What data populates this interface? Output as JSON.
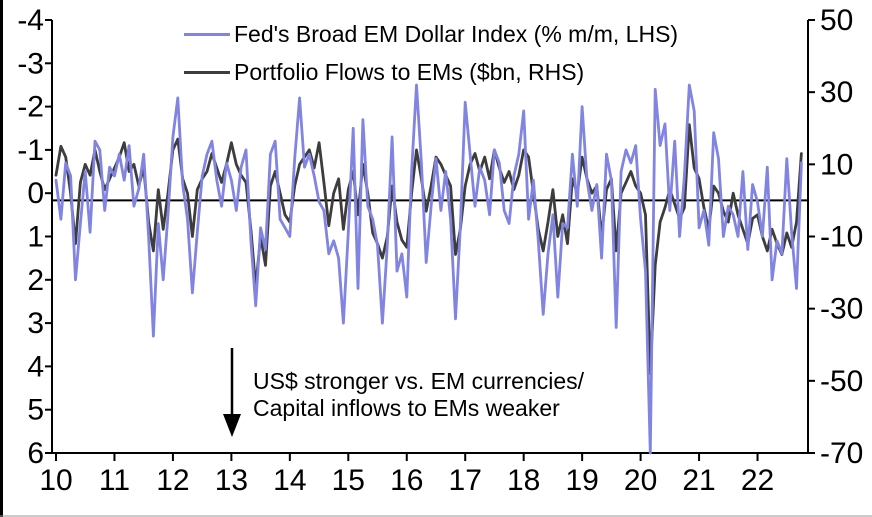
{
  "legend": {
    "items": [
      {
        "label": "Fed's Broad EM Dollar Index (% m/m, LHS)",
        "color": "#8184e0"
      },
      {
        "label": "Portfolio Flows to EMs ($bn, RHS)",
        "color": "#3d3d3d"
      }
    ]
  },
  "annotation": {
    "line1": "US$ stronger vs. EM currencies/",
    "line2": "Capital inflows to EMs weaker",
    "arrow_direction": "down",
    "arrow_color": "#000000"
  },
  "chart_data": {
    "type": "line",
    "title": "",
    "x_unit": "monthly, Jan 2010 to Oct 2022",
    "x_tick_labels": [
      "10",
      "11",
      "12",
      "13",
      "14",
      "15",
      "16",
      "17",
      "18",
      "19",
      "20",
      "21",
      "22"
    ],
    "left_axis": {
      "name": "Fed's Broad EM Dollar Index (% m/m)",
      "ticks": [
        -4,
        -3,
        -2,
        -1,
        0,
        1,
        2,
        3,
        4,
        5,
        6
      ],
      "min": -4,
      "max": 6,
      "inverted_display": true
    },
    "right_axis": {
      "name": "Portfolio Flows to EMs ($bn)",
      "ticks": [
        50,
        30,
        10,
        -10,
        -30,
        -50,
        -70
      ],
      "min": -70,
      "max": 50
    },
    "zero_line": 0,
    "axis_color": "#000000",
    "series": [
      {
        "name": "Fed's Broad EM Dollar Index (% m/m, LHS)",
        "axis": "left",
        "color": "#8184e0",
        "values": [
          -0.3,
          0.6,
          -0.7,
          -0.4,
          2.0,
          0.7,
          -0.5,
          0.9,
          -1.2,
          -1.0,
          0.4,
          -0.6,
          -0.4,
          -0.9,
          -0.3,
          -1.1,
          0.3,
          -0.1,
          -0.9,
          1.0,
          3.3,
          0.7,
          2.0,
          0.5,
          -1.3,
          -2.2,
          -0.2,
          0.6,
          2.3,
          0.9,
          -0.4,
          -0.9,
          -1.2,
          -0.3,
          0.3,
          -0.7,
          -0.3,
          0.4,
          -0.6,
          -1.0,
          1.1,
          2.6,
          0.8,
          1.3,
          -0.9,
          -1.2,
          0.6,
          0.8,
          1.0,
          -0.8,
          -2.2,
          -0.6,
          -0.9,
          -0.4,
          0.2,
          0.4,
          1.4,
          1.1,
          1.5,
          3.0,
          0.9,
          -1.5,
          2.2,
          -1.7,
          0.3,
          0.6,
          1.2,
          3.0,
          1.2,
          -1.3,
          1.8,
          1.4,
          2.4,
          -0.5,
          -2.5,
          -0.7,
          1.6,
          0.3,
          -0.8,
          0.4,
          -0.5,
          0.6,
          2.9,
          0.8,
          -2.1,
          -0.9,
          0.3,
          -0.6,
          -0.3,
          0.5,
          -1.0,
          -0.7,
          0.4,
          0.7,
          -0.4,
          -0.9,
          -1.9,
          0.6,
          -0.3,
          1.1,
          2.8,
          1.4,
          0.5,
          2.4,
          0.7,
          0.8,
          -0.9,
          0.3,
          -2.0,
          -0.3,
          0.4,
          -0.2,
          1.5,
          -0.9,
          -0.3,
          3.1,
          -0.5,
          -1.0,
          -0.7,
          -1.1,
          0.6,
          1.8,
          6.0,
          -2.4,
          -1.1,
          -1.6,
          0.4,
          -1.2,
          1.0,
          -0.4,
          -2.5,
          -1.9,
          0.8,
          0.4,
          1.2,
          -1.4,
          -0.8,
          1.0,
          0.3,
          0.5,
          1.0,
          -0.5,
          1.3,
          -0.2,
          0.2,
          1.0,
          -0.6,
          2.0,
          1.1,
          1.4,
          -0.8,
          0.9,
          2.2,
          -0.7
        ]
      },
      {
        "name": "Portfolio Flows to EMs ($bn, RHS)",
        "axis": "right",
        "color": "#3d3d3d",
        "values": [
          7,
          15,
          12,
          2,
          -12,
          5,
          10,
          7,
          14,
          8,
          3,
          6,
          9,
          12,
          16,
          8,
          10,
          4,
          9,
          -6,
          -14,
          3,
          -8,
          2,
          14,
          17,
          6,
          2,
          -10,
          3,
          6,
          8,
          13,
          9,
          5,
          10,
          16,
          10,
          7,
          5,
          -8,
          -24,
          -10,
          -18,
          4,
          8,
          2,
          -4,
          -6,
          4,
          10,
          12,
          14,
          9,
          16,
          5,
          -7,
          2,
          6,
          -8,
          3,
          8,
          -4,
          10,
          2,
          -9,
          -12,
          -16,
          -10,
          4,
          -6,
          -11,
          -13,
          2,
          14,
          6,
          -3,
          4,
          12,
          10,
          7,
          4,
          -15,
          -8,
          4,
          10,
          13,
          8,
          12,
          6,
          14,
          9,
          5,
          8,
          3,
          7,
          14,
          12,
          2,
          -8,
          -14,
          -6,
          3,
          -10,
          -4,
          -12,
          6,
          2,
          12,
          6,
          2,
          4,
          -10,
          3,
          6,
          -14,
          2,
          5,
          8,
          4,
          2,
          -4,
          -48,
          -18,
          -6,
          -2,
          3,
          -1,
          -5,
          -2,
          21,
          9,
          6,
          -2,
          -8,
          4,
          2,
          -3,
          -6,
          2,
          -4,
          -8,
          -12,
          -5,
          -4,
          -10,
          -14,
          -8,
          -12,
          -15,
          -9,
          -13,
          -6,
          13
        ]
      }
    ]
  }
}
